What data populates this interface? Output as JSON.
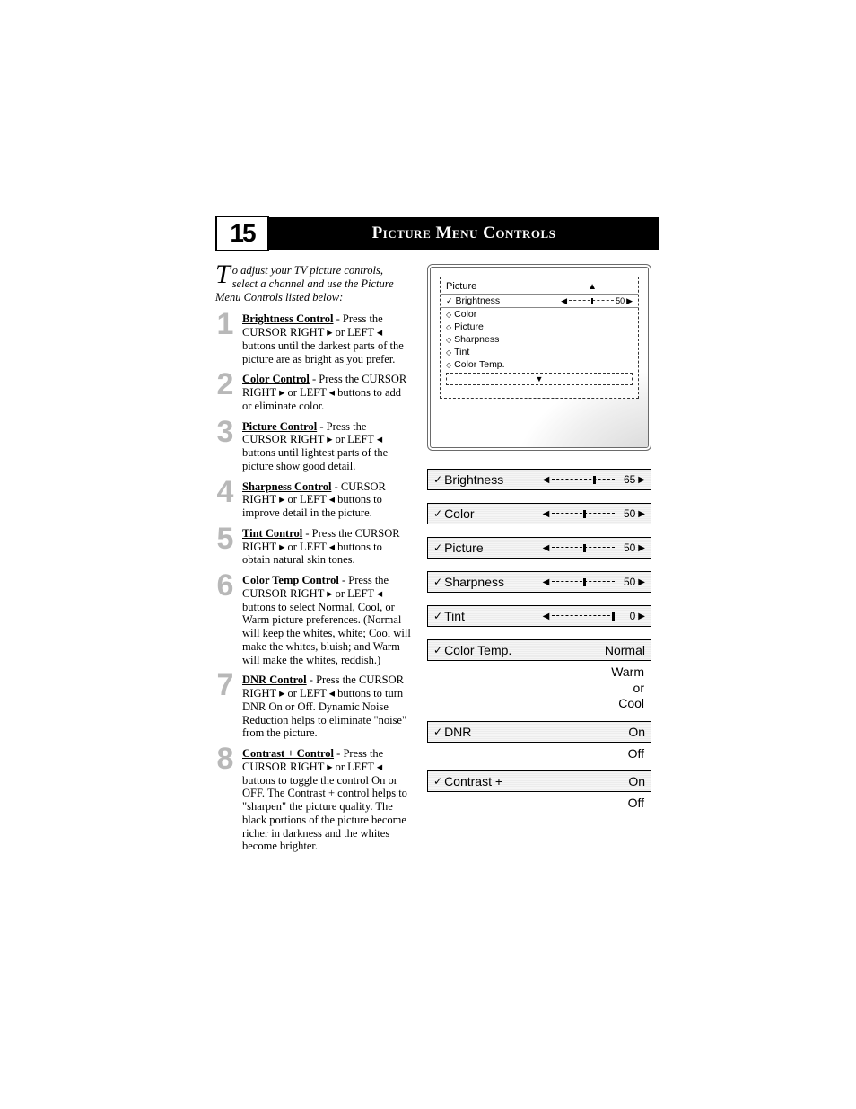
{
  "page": {
    "section_number": "15",
    "header_title": "Picture Menu Controls"
  },
  "intro": {
    "dropcap": "T",
    "text": "o adjust your TV picture controls, select a channel and use the Picture Menu Controls listed below:"
  },
  "steps": [
    {
      "num": "1",
      "title": "Brightness Control",
      "body": " - Press the CURSOR RIGHT ▸ or LEFT ◂ buttons until the darkest parts of the picture are as bright as you prefer."
    },
    {
      "num": "2",
      "title": "Color Control",
      "body": " - Press the CURSOR RIGHT ▸ or LEFT ◂  buttons to add or eliminate color."
    },
    {
      "num": "3",
      "title": "Picture Control",
      "body": " - Press the CURSOR RIGHT ▸ or LEFT ◂ buttons until lightest parts of the picture show good detail."
    },
    {
      "num": "4",
      "title": "Sharpness Control",
      "body": " - CURSOR RIGHT ▸ or LEFT ◂  buttons to improve detail in the picture."
    },
    {
      "num": "5",
      "title": "Tint Control",
      "body": " - Press the CURSOR RIGHT ▸ or LEFT ◂ buttons to obtain natural skin tones."
    },
    {
      "num": "6",
      "title": "Color Temp Control",
      "body": " - Press the CURSOR RIGHT ▸ or LEFT ◂  buttons to select Normal, Cool, or Warm picture preferences. (Normal will keep the whites, white; Cool will make the whites, bluish; and Warm will make the whites, reddish.)"
    },
    {
      "num": "7",
      "title": "DNR Control",
      "body": " - Press the CURSOR RIGHT ▸ or LEFT ◂ buttons to turn DNR On or Off.  Dynamic Noise Reduction helps to eliminate \"noise\" from the picture."
    },
    {
      "num": "8",
      "title": "Contrast + Control",
      "body": " - Press the CURSOR RIGHT ▸ or LEFT ◂ buttons to toggle the control On or OFF. The Contrast + control helps to \"sharpen\" the picture quality. The black portions of the picture become richer in darkness and the whites become brighter."
    }
  ],
  "osd": {
    "title": "Picture",
    "selected": {
      "label": "Brightness",
      "value": "50",
      "thumb_pct": 50
    },
    "items": [
      "Color",
      "Picture",
      "Sharpness",
      "Tint",
      "Color Temp."
    ]
  },
  "sliders": [
    {
      "type": "slider",
      "label": "Brightness",
      "value": "65",
      "thumb_pct": 65
    },
    {
      "type": "slider",
      "label": "Color",
      "value": "50",
      "thumb_pct": 50
    },
    {
      "type": "slider",
      "label": "Picture",
      "value": "50",
      "thumb_pct": 50
    },
    {
      "type": "slider",
      "label": "Sharpness",
      "value": "50",
      "thumb_pct": 50
    },
    {
      "type": "slider",
      "label": "Tint",
      "value": "0",
      "thumb_pct": 95
    },
    {
      "type": "choice",
      "label": "Color Temp.",
      "value": "Normal",
      "options": "Warm\nor\nCool"
    },
    {
      "type": "choice",
      "label": "DNR",
      "value": "On",
      "options": "Off"
    },
    {
      "type": "choice",
      "label": "Contrast +",
      "value": "On",
      "options": "Off"
    }
  ],
  "colors": {
    "step_num": "#b8b8b8",
    "header_bg": "#000000",
    "header_fg": "#ffffff",
    "hatch_light": "#f5f5f5",
    "hatch_dark": "#ececec"
  }
}
